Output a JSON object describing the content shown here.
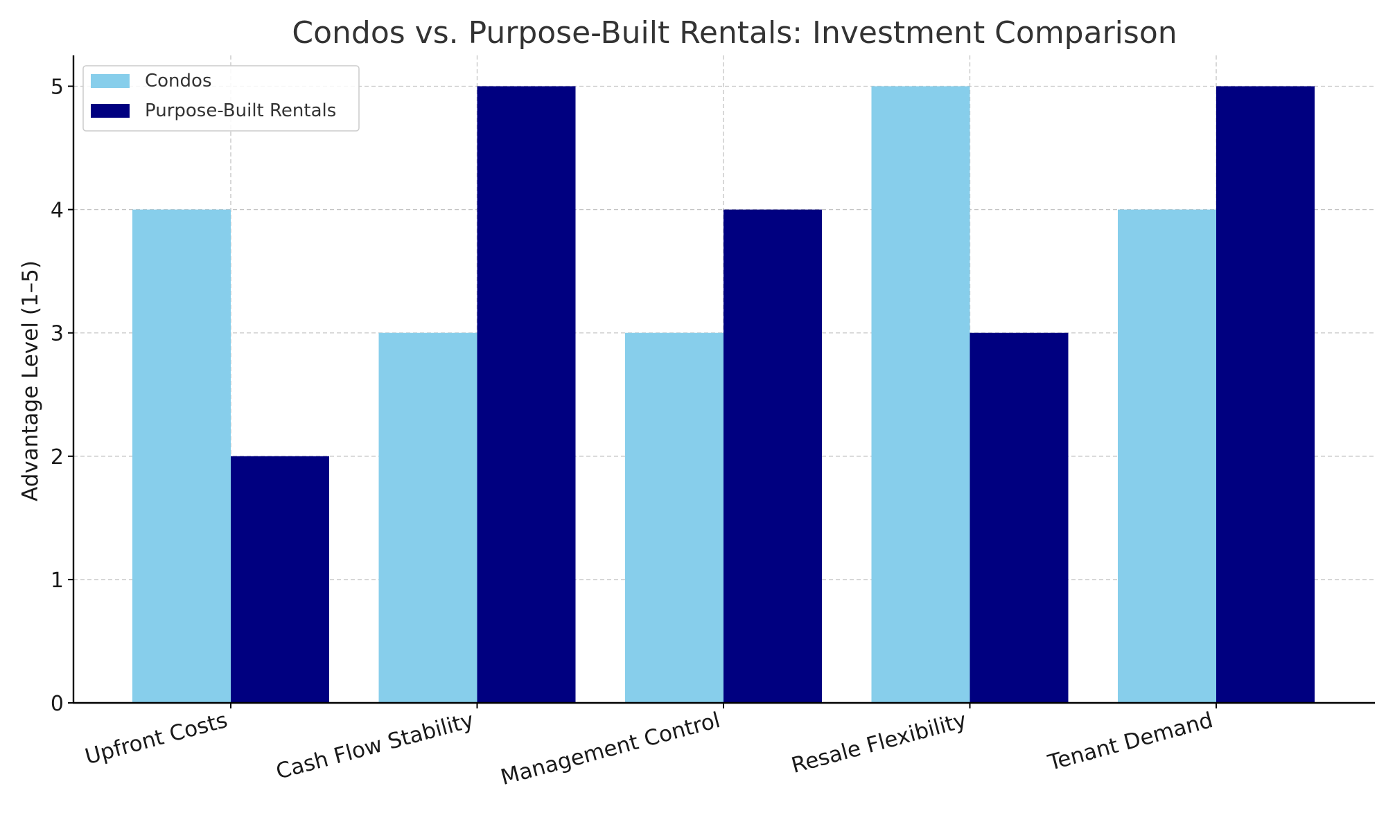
{
  "chart_data": {
    "type": "bar",
    "title": "Condos vs. Purpose-Built Rentals: Investment Comparison",
    "xlabel": "",
    "ylabel": "Advantage Level (1–5)",
    "categories": [
      "Upfront Costs",
      "Cash Flow Stability",
      "Management Control",
      "Resale Flexibility",
      "Tenant Demand"
    ],
    "series": [
      {
        "name": "Condos",
        "values": [
          4,
          3,
          3,
          5,
          4
        ],
        "color": "#87ceeb"
      },
      {
        "name": "Purpose-Built Rentals",
        "values": [
          2,
          5,
          4,
          3,
          5
        ],
        "color": "#000080"
      }
    ],
    "ylim": [
      0,
      5.25
    ],
    "yticks": [
      0,
      1,
      2,
      3,
      4,
      5
    ],
    "grid": true,
    "legend_position": "top-left"
  }
}
